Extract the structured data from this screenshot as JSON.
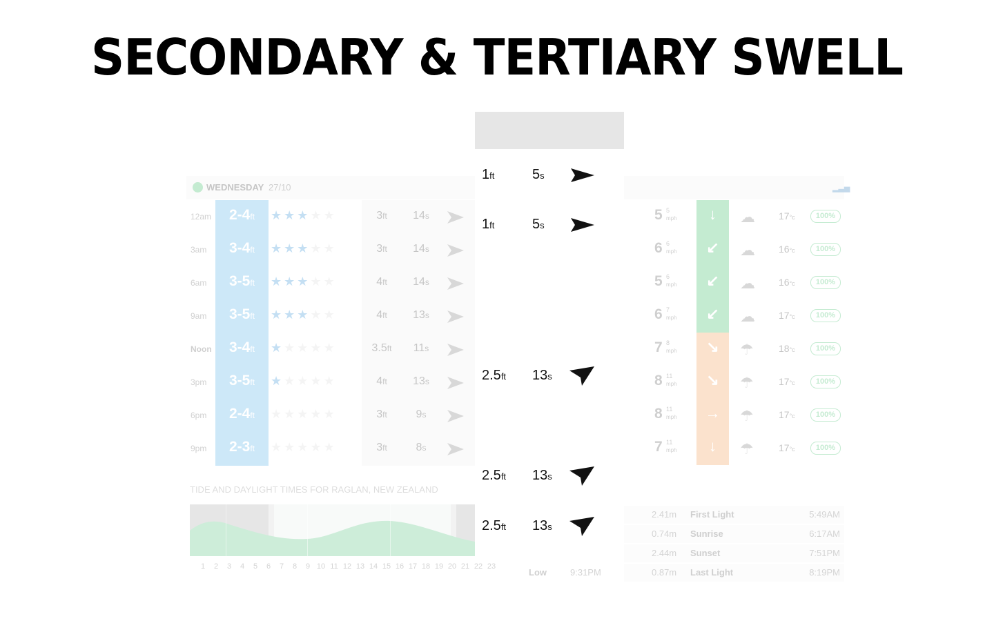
{
  "page_title": "SECONDARY & TERTIARY SWELL",
  "forecast": {
    "day": "WEDNESDAY",
    "date": "27/10",
    "rows": [
      {
        "time": "12am",
        "wave_range": "2-4",
        "wave_unit": "ft",
        "stars_on": 3,
        "stars_off": 2,
        "swell_height": "3",
        "swell_unit": "ft",
        "swell_period": "14",
        "period_unit": "s",
        "wind_speed": "5",
        "wind_gust": "5",
        "wind_unit": "mph",
        "wind_arrow": "↓",
        "wind_color": "#2eb85c",
        "weather": "☁",
        "temp": "17",
        "temp_unit": "°c",
        "prob": "100%"
      },
      {
        "time": "3am",
        "wave_range": "3-4",
        "wave_unit": "ft",
        "stars_on": 3,
        "stars_off": 2,
        "swell_height": "3",
        "swell_unit": "ft",
        "swell_period": "14",
        "period_unit": "s",
        "wind_speed": "6",
        "wind_gust": "6",
        "wind_unit": "mph",
        "wind_arrow": "↙",
        "wind_color": "#2eb85c",
        "weather": "☁",
        "temp": "16",
        "temp_unit": "°c",
        "prob": "100%"
      },
      {
        "time": "6am",
        "wave_range": "3-5",
        "wave_unit": "ft",
        "stars_on": 3,
        "stars_off": 2,
        "swell_height": "4",
        "swell_unit": "ft",
        "swell_period": "14",
        "period_unit": "s",
        "wind_speed": "5",
        "wind_gust": "6",
        "wind_unit": "mph",
        "wind_arrow": "↙",
        "wind_color": "#2eb85c",
        "weather": "☁",
        "temp": "16",
        "temp_unit": "°c",
        "prob": "100%"
      },
      {
        "time": "9am",
        "wave_range": "3-5",
        "wave_unit": "ft",
        "stars_on": 3,
        "stars_off": 2,
        "swell_height": "4",
        "swell_unit": "ft",
        "swell_period": "13",
        "period_unit": "s",
        "wind_speed": "6",
        "wind_gust": "7",
        "wind_unit": "mph",
        "wind_arrow": "↙",
        "wind_color": "#2eb85c",
        "weather": "☁",
        "temp": "17",
        "temp_unit": "°c",
        "prob": "100%"
      },
      {
        "time": "Noon",
        "wave_range": "3-4",
        "wave_unit": "ft",
        "stars_on": 1,
        "stars_off": 4,
        "swell_height": "3.5",
        "swell_unit": "ft",
        "swell_period": "11",
        "period_unit": "s",
        "wind_speed": "7",
        "wind_gust": "8",
        "wind_unit": "mph",
        "wind_arrow": "↘",
        "wind_color": "#f39a4e",
        "weather": "☂",
        "temp": "18",
        "temp_unit": "°c",
        "prob": "100%"
      },
      {
        "time": "3pm",
        "wave_range": "3-5",
        "wave_unit": "ft",
        "stars_on": 1,
        "stars_off": 4,
        "swell_height": "4",
        "swell_unit": "ft",
        "swell_period": "13",
        "period_unit": "s",
        "wind_speed": "8",
        "wind_gust": "11",
        "wind_unit": "mph",
        "wind_arrow": "↘",
        "wind_color": "#f39a4e",
        "weather": "☂",
        "temp": "17",
        "temp_unit": "°c",
        "prob": "100%"
      },
      {
        "time": "6pm",
        "wave_range": "2-4",
        "wave_unit": "ft",
        "stars_on": 0,
        "stars_off": 5,
        "swell_height": "3",
        "swell_unit": "ft",
        "swell_period": "9",
        "period_unit": "s",
        "wind_speed": "8",
        "wind_gust": "11",
        "wind_unit": "mph",
        "wind_arrow": "→",
        "wind_color": "#f39a4e",
        "weather": "☂",
        "temp": "17",
        "temp_unit": "°c",
        "prob": "100%"
      },
      {
        "time": "9pm",
        "wave_range": "2-3",
        "wave_unit": "ft",
        "stars_on": 0,
        "stars_off": 5,
        "swell_height": "3",
        "swell_unit": "ft",
        "swell_period": "8",
        "period_unit": "s",
        "wind_speed": "7",
        "wind_gust": "11",
        "wind_unit": "mph",
        "wind_arrow": "↓",
        "wind_color": "#f39a4e",
        "weather": "☂",
        "temp": "17",
        "temp_unit": "°c",
        "prob": "100%"
      }
    ]
  },
  "highlight": [
    {
      "height": "1",
      "height_unit": "ft",
      "period": "5",
      "period_unit": "s",
      "direction": "east"
    },
    {
      "height": "1",
      "height_unit": "ft",
      "period": "5",
      "period_unit": "s",
      "direction": "east"
    },
    {
      "height": "2.5",
      "height_unit": "ft",
      "period": "13",
      "period_unit": "s",
      "direction": "south-east"
    },
    {
      "height": "2.5",
      "height_unit": "ft",
      "period": "13",
      "period_unit": "s",
      "direction": "south-east"
    },
    {
      "height": "2.5",
      "height_unit": "ft",
      "period": "13",
      "period_unit": "s",
      "direction": "south-east"
    }
  ],
  "tide": {
    "title": "TIDE AND DAYLIGHT TIMES FOR RAGLAN, NEW ZEALAND",
    "axis": [
      "1",
      "2",
      "3",
      "4",
      "5",
      "6",
      "7",
      "8",
      "9",
      "10",
      "11",
      "12",
      "13",
      "14",
      "15",
      "16",
      "17",
      "18",
      "19",
      "20",
      "21",
      "22",
      "23"
    ],
    "rows": [
      {
        "height": "2.41m",
        "label": "First Light",
        "time": "5:49AM"
      },
      {
        "height": "0.74m",
        "label": "Sunrise",
        "time": "6:17AM"
      },
      {
        "height": "2.44m",
        "label": "Sunset",
        "time": "7:51PM"
      },
      {
        "height": "0.87m",
        "label": "Last Light",
        "time": "8:19PM"
      }
    ],
    "low": {
      "label": "Low",
      "time": "9:31PM"
    }
  }
}
